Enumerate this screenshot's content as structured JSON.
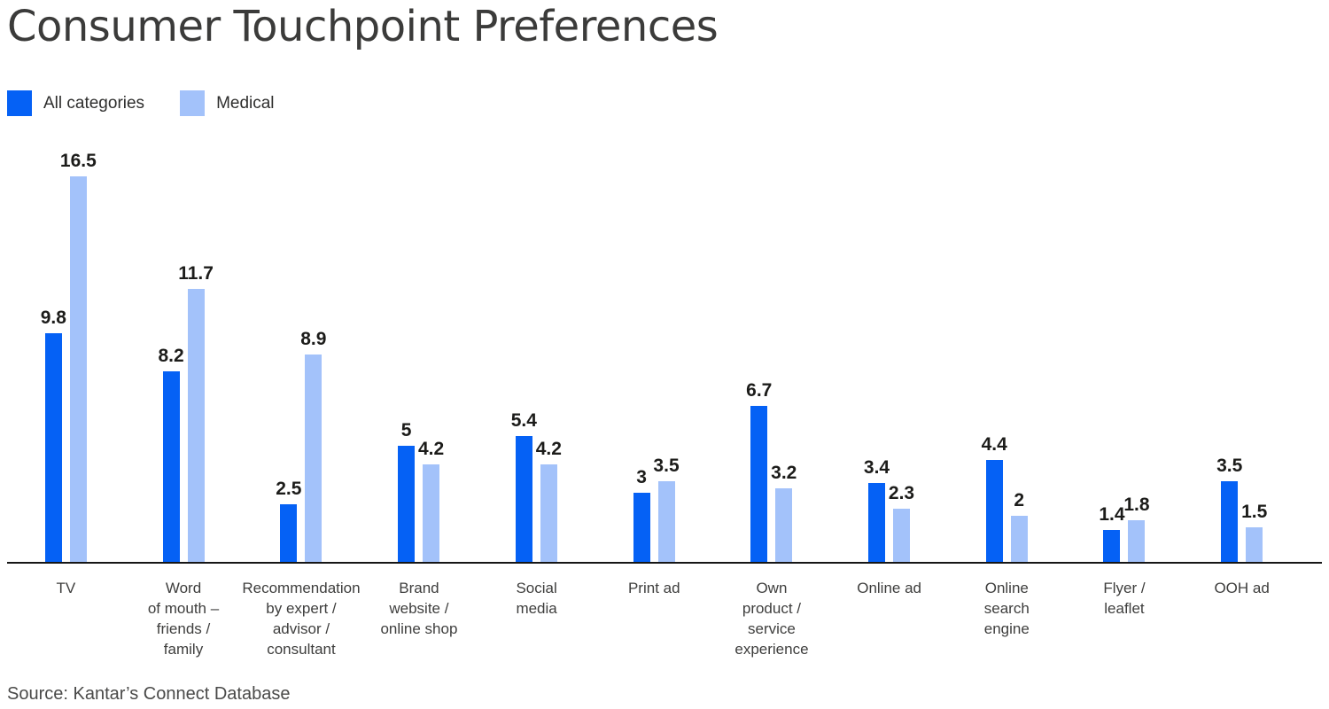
{
  "title": "Consumer Touchpoint Preferences",
  "legend": {
    "items": [
      {
        "label": "All categories",
        "color": "#0561f5"
      },
      {
        "label": "Medical",
        "color": "#a3c2fa"
      }
    ]
  },
  "source": "Source: Kantar’s Connect Database",
  "colors": {
    "series_all_categories": "#0561f5",
    "series_medical": "#a3c2fa",
    "axis_line": "#161616",
    "title_text": "#3b3b3a",
    "value_label_text": "#1c1c1a"
  },
  "chart_data": {
    "type": "bar",
    "title": "Consumer Touchpoint Preferences",
    "categories": [
      "TV",
      "Word of mouth – friends / family",
      "Recommendation by expert / advisor / consultant",
      "Brand website / online shop",
      "Social media",
      "Print ad",
      "Own product / service experience",
      "Online ad",
      "Online search engine",
      "Flyer / leaflet",
      "OOH ad"
    ],
    "category_display": [
      "TV",
      "Word\nof mouth –\nfriends /\nfamily",
      "Recommendation\nby expert /\nadvisor /\nconsultant",
      "Brand\nwebsite /\nonline shop",
      "Social\nmedia",
      "Print ad",
      "Own\nproduct /\nservice\nexperience",
      "Online ad",
      "Online\nsearch\nengine",
      "Flyer /\nleaflet",
      "OOH ad"
    ],
    "series": [
      {
        "name": "All categories",
        "color": "#0561f5",
        "values": [
          9.8,
          8.2,
          2.5,
          5,
          5.4,
          3,
          6.7,
          3.4,
          4.4,
          1.4,
          3.5
        ]
      },
      {
        "name": "Medical",
        "color": "#a3c2fa",
        "values": [
          16.5,
          11.7,
          8.9,
          4.2,
          4.2,
          3.5,
          3.2,
          2.3,
          2,
          1.8,
          1.5
        ]
      }
    ],
    "value_labels_shown": true,
    "xlabel": "",
    "ylabel": "",
    "ylim": [
      0,
      17.4
    ],
    "grid": false,
    "y_axis_shown": false,
    "legend_position": "top-left",
    "source_note": "Source: Kantar’s Connect Database"
  }
}
